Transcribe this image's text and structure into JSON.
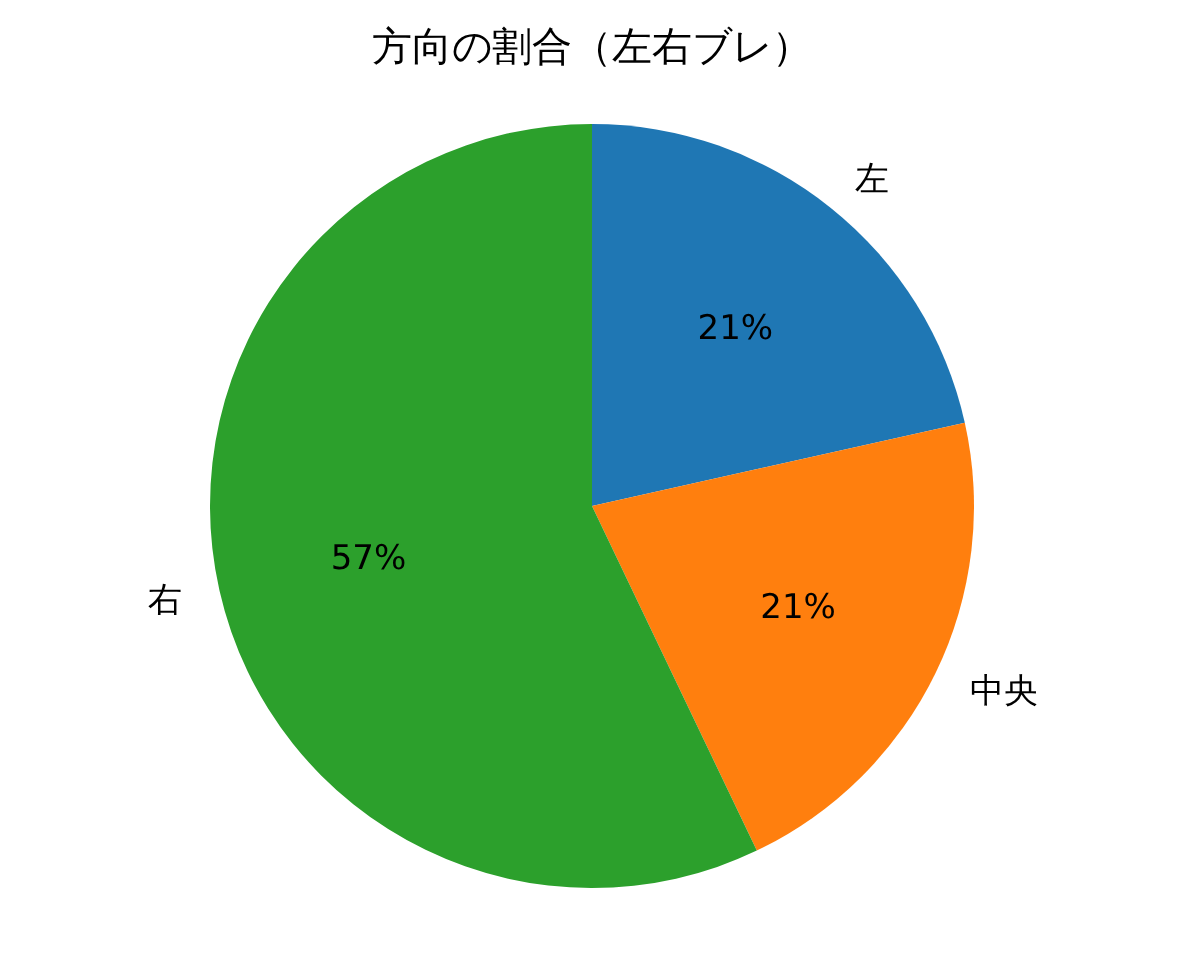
{
  "chart_data": {
    "type": "pie",
    "title": "方向の割合（左右ブレ）",
    "categories": [
      "左",
      "中央",
      "右"
    ],
    "values": [
      21.5,
      21.4,
      57.1
    ],
    "value_labels": [
      "21%",
      "21%",
      "57%"
    ],
    "colors": [
      "#1f77b4",
      "#ff7f0e",
      "#2ca02c"
    ]
  }
}
